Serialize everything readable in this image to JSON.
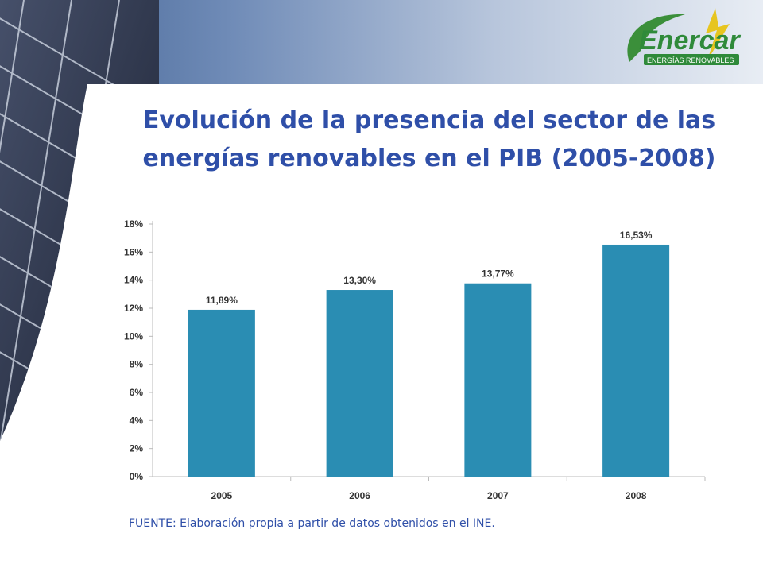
{
  "header": {
    "logo_text": "Enercar",
    "logo_subtitle": "ENERGÍAS RENOVABLES"
  },
  "slide": {
    "title_line1": "Evolución de la presencia del sector de las",
    "title_line2": "energías renovables en el PIB (2005-2008)",
    "source": "FUENTE: Elaboración propia a partir de datos obtenidos en el INE."
  },
  "colors": {
    "bar": "#2a8db3",
    "title": "#2f4fa8",
    "axis_text": "#333333"
  },
  "chart_data": {
    "type": "bar",
    "categories": [
      "2005",
      "2006",
      "2007",
      "2008"
    ],
    "values": [
      11.89,
      13.3,
      13.77,
      16.53
    ],
    "data_labels": [
      "11,89%",
      "13,30%",
      "13,77%",
      "16,53%"
    ],
    "y_ticks": [
      "0%",
      "2%",
      "4%",
      "6%",
      "8%",
      "10%",
      "12%",
      "14%",
      "16%",
      "18%"
    ],
    "ylim": [
      0,
      18
    ],
    "title": "",
    "xlabel": "",
    "ylabel": "",
    "grid": false,
    "legend": "none"
  }
}
